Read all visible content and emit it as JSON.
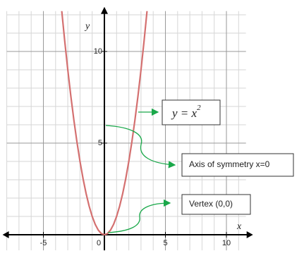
{
  "chart_data": {
    "type": "line",
    "xlabel": "x",
    "ylabel": "y",
    "x": [
      -3.5,
      -3.25,
      -3,
      -2.75,
      -2.5,
      -2.25,
      -2,
      -1.75,
      -1.5,
      -1.25,
      -1,
      -0.75,
      -0.5,
      -0.25,
      0,
      0.25,
      0.5,
      0.75,
      1,
      1.25,
      1.5,
      1.75,
      2,
      2.25,
      2.5,
      2.75,
      3,
      3.25,
      3.5
    ],
    "series": [
      {
        "color": "#d47070",
        "values": [
          12.25,
          10.5625,
          9,
          7.5625,
          6.25,
          5.0625,
          4,
          3.0625,
          2.25,
          1.5625,
          1,
          0.5625,
          0.25,
          0.0625,
          0,
          0.0625,
          0.25,
          0.5625,
          1,
          1.5625,
          2.25,
          3.0625,
          4,
          5.0625,
          6.25,
          7.5625,
          9,
          10.5625,
          12.25
        ]
      }
    ],
    "xlim": [
      -8,
      11.6
    ],
    "ylim": [
      -0.85,
      12.2
    ],
    "xticks": [
      -5,
      0,
      5,
      10
    ],
    "yticks": [
      5,
      10
    ],
    "grid": true,
    "annotations": [
      {
        "text": "y = x",
        "superscript": "2"
      },
      {
        "text": "Axis of symmetry x=0"
      },
      {
        "text": "Vertex (0,0)"
      }
    ]
  }
}
